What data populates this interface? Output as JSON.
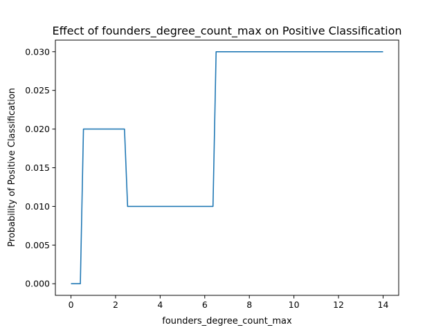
{
  "chart_data": {
    "type": "line",
    "title": "Effect of founders_degree_count_max on Positive Classification",
    "xlabel": "founders_degree_count_max",
    "ylabel": "Probability of Positive Classification",
    "xlim": [
      -0.7,
      14.7
    ],
    "ylim": [
      -0.0015,
      0.0315
    ],
    "xticks": [
      0,
      2,
      4,
      6,
      8,
      10,
      12,
      14
    ],
    "xtick_labels": [
      "0",
      "2",
      "4",
      "6",
      "8",
      "10",
      "12",
      "14"
    ],
    "yticks": [
      0.0,
      0.005,
      0.01,
      0.015,
      0.02,
      0.025,
      0.03
    ],
    "ytick_labels": [
      "0.000",
      "0.005",
      "0.010",
      "0.015",
      "0.020",
      "0.025",
      "0.030"
    ],
    "grid": false,
    "series": [
      {
        "color": "#1f77b4",
        "x": [
          0,
          0.42,
          0.56,
          2.4,
          2.54,
          6.37,
          6.51,
          14
        ],
        "y": [
          0.0,
          0.0,
          0.02,
          0.02,
          0.01,
          0.01,
          0.03,
          0.03
        ]
      }
    ]
  }
}
